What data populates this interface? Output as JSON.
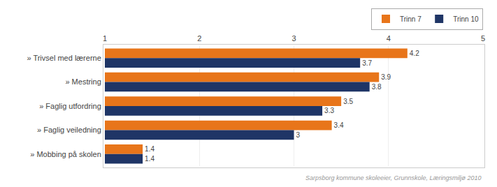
{
  "chart_data": {
    "type": "bar",
    "orientation": "horizontal",
    "categories": [
      "» Trivsel med lærerne",
      "» Mestring",
      "» Faglig utfordring",
      "» Faglig veiledning",
      "» Mobbing på skolen"
    ],
    "series": [
      {
        "name": "Trinn 7",
        "color": "#E8751A",
        "values": [
          4.2,
          3.9,
          3.5,
          3.4,
          1.4
        ]
      },
      {
        "name": "Trinn 10",
        "color": "#1F3566",
        "values": [
          3.7,
          3.8,
          3.3,
          3.0,
          1.4
        ]
      }
    ],
    "xlim": [
      1,
      5
    ],
    "xticks": [
      1,
      2,
      3,
      4,
      5
    ],
    "grid": true,
    "legend": "upper right",
    "data_labels": true,
    "annotations": [
      "Sarpsborg kommune skoleeier, Grunnskole, Læringsmiljø 2010"
    ]
  }
}
